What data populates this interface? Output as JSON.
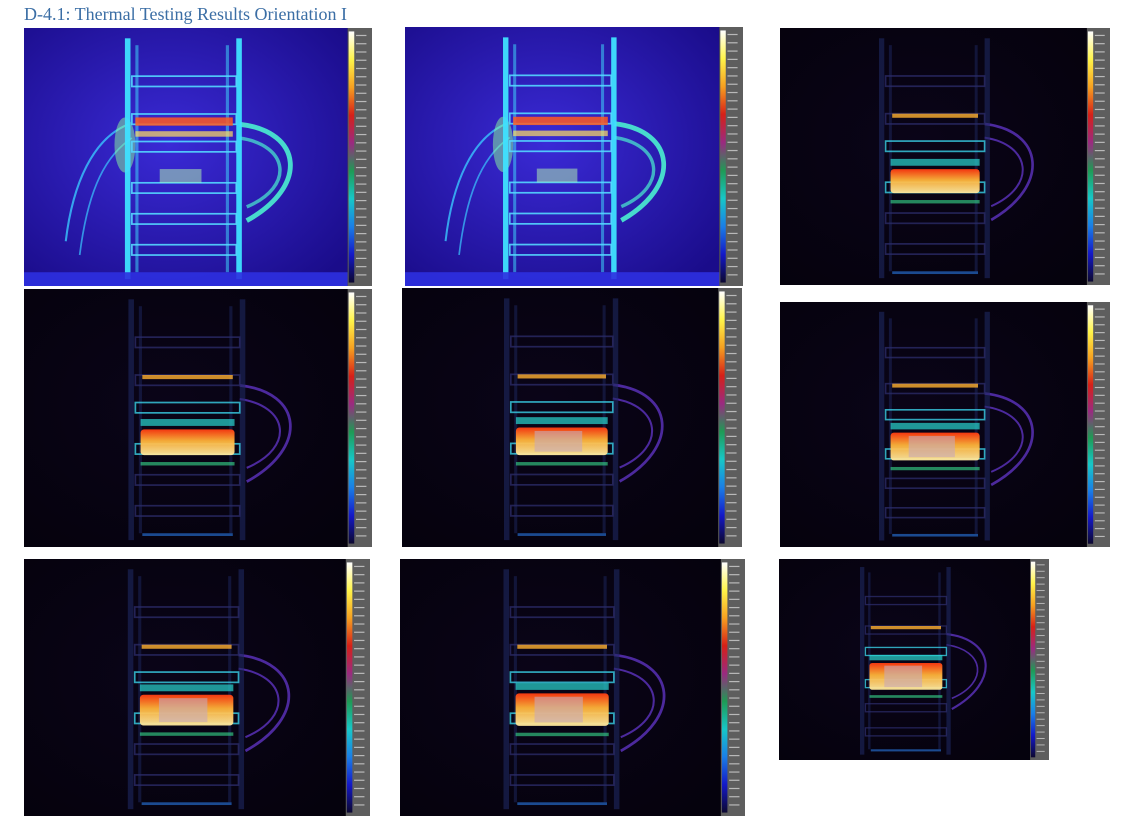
{
  "document": {
    "title": "D-4.1: Thermal Testing Results Orientation I"
  },
  "colors": {
    "title": "#3b6ea5",
    "colorbar_gradient": [
      "#ffffff",
      "#fff44a",
      "#f6a020",
      "#d62018",
      "#9a2a80",
      "#1f9a55",
      "#17c7c7",
      "#1a7ee6",
      "#1418c8",
      "#0c0830"
    ],
    "colorbar_gutter": "#5e5e5e"
  },
  "images": [
    {
      "name": "thermal-image-1",
      "phase": 0
    },
    {
      "name": "thermal-image-2",
      "phase": 1
    },
    {
      "name": "thermal-image-3",
      "phase": 2
    },
    {
      "name": "thermal-image-4",
      "phase": 3
    },
    {
      "name": "thermal-image-5",
      "phase": 4
    },
    {
      "name": "thermal-image-6",
      "phase": 5
    },
    {
      "name": "thermal-image-7",
      "phase": 6
    },
    {
      "name": "thermal-image-8",
      "phase": 7
    },
    {
      "name": "thermal-image-9",
      "phase": 8
    }
  ]
}
